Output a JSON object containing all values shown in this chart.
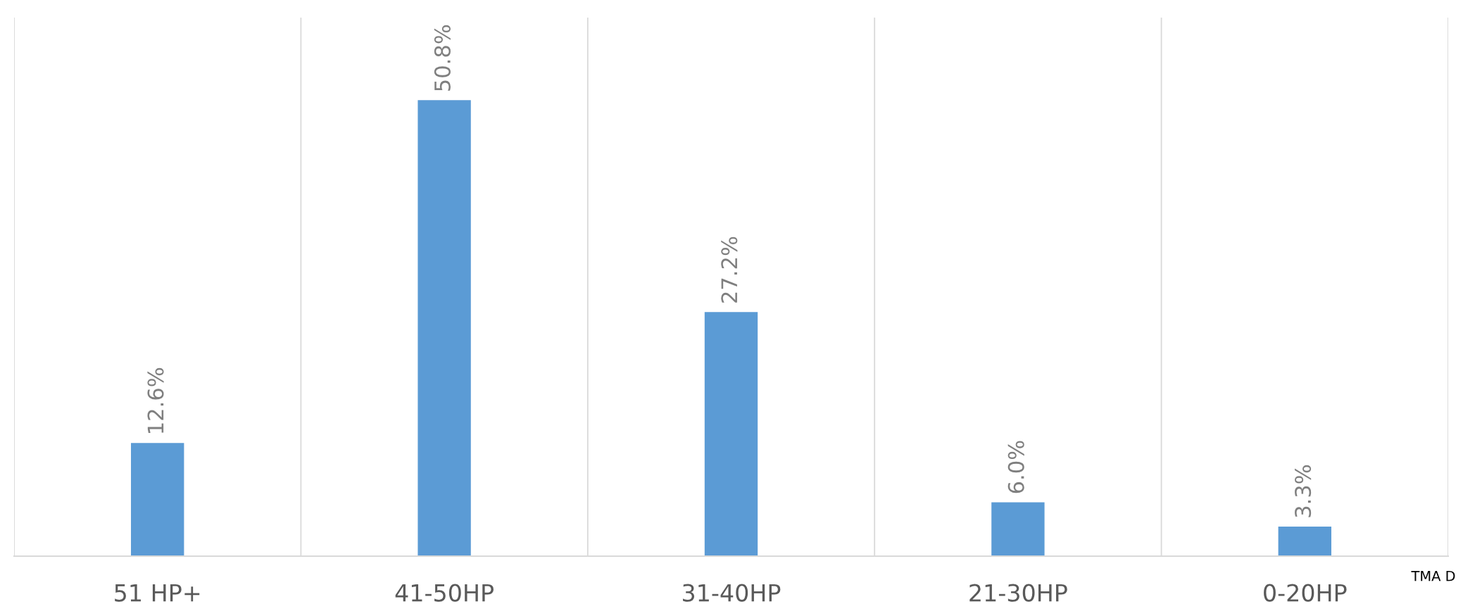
{
  "chart_data": {
    "type": "bar",
    "categories": [
      "51 HP+",
      "41-50HP",
      "31-40HP",
      "21-30HP",
      "0-20HP"
    ],
    "values": [
      12.6,
      50.8,
      27.2,
      6.0,
      3.3
    ],
    "value_labels": [
      "12.6%",
      "50.8%",
      "27.2%",
      "6.0%",
      "3.3%"
    ],
    "color": "#5b9bd5",
    "ylim": [
      0,
      60
    ],
    "grid": "x",
    "tick_labels": "x",
    "annotations": [
      "TMA D"
    ]
  }
}
